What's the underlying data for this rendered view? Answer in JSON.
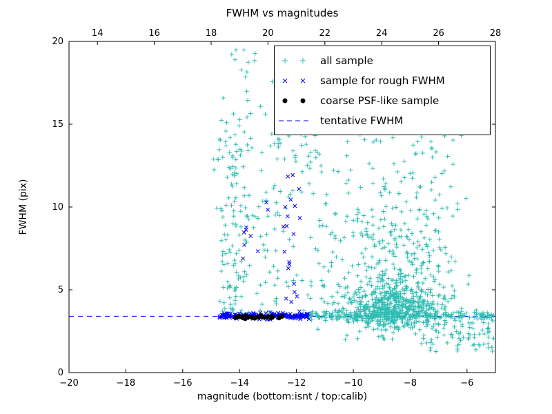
{
  "chart_data": {
    "type": "scatter",
    "title": "FWHM vs magnitudes",
    "xlabel": "magnitude (bottom:isnt / top:calib)",
    "ylabel": "FWHM (pix)",
    "xlim": [
      -20,
      -5
    ],
    "ylim": [
      0,
      20
    ],
    "x_ticks_bottom": [
      -20,
      -18,
      -16,
      -14,
      -12,
      -10,
      -8,
      -6
    ],
    "x_ticks_top": [
      14,
      16,
      18,
      20,
      22,
      24,
      26,
      28
    ],
    "top_axis_offset": 33,
    "y_ticks": [
      0,
      5,
      10,
      15,
      20
    ],
    "grid": false,
    "legend_position": "upper right",
    "line": {
      "name": "tentative FWHM",
      "style": "dashed",
      "color": "#0000ff",
      "y": 3.4
    },
    "legend": [
      {
        "label": "all sample",
        "marker": "plus",
        "color": "#2fbdb3",
        "type": "scatter"
      },
      {
        "label": "sample for rough FWHM",
        "marker": "x",
        "color": "#0000ff",
        "type": "scatter"
      },
      {
        "label": "coarse PSF-like sample",
        "marker": "dot",
        "color": "#000000",
        "type": "scatter"
      },
      {
        "label": "tentative FWHM",
        "marker": "dash",
        "color": "#0000ff",
        "type": "line"
      }
    ],
    "series": [
      {
        "name": "all sample",
        "marker": "plus",
        "color": "#2fbdb3",
        "clusters": [
          {
            "n": 520,
            "x": {
              "g": [
                -8.6,
                0.85
              ]
            },
            "y": {
              "g": [
                3.9,
                0.75
              ]
            },
            "ymin": 2.0
          },
          {
            "n": 260,
            "x": {
              "g": [
                -8.4,
                1.0
              ]
            },
            "y": {
              "g": [
                6.3,
                2.2
              ]
            },
            "ymin": 3.0
          },
          {
            "n": 240,
            "x": {
              "u": [
                -11.8,
                -5.05
              ]
            },
            "y": {
              "g": [
                3.45,
                0.14
              ]
            }
          },
          {
            "n": 110,
            "x": {
              "g": [
                -14.3,
                0.26
              ]
            },
            "y": {
              "u": [
                3.4,
                14.5
              ]
            }
          },
          {
            "n": 22,
            "x": {
              "u": [
                -14.7,
                -13.4
              ]
            },
            "y": {
              "u": [
                14.5,
                19.8
              ]
            }
          },
          {
            "n": 135,
            "x": {
              "u": [
                -13.9,
                -10.5
              ]
            },
            "y": {
              "u": [
                3.6,
                14.8
              ]
            }
          },
          {
            "n": 10,
            "x": {
              "u": [
                -13.3,
                -11.6
              ]
            },
            "y": {
              "u": [
                15.5,
                19.7
              ]
            }
          },
          {
            "n": 90,
            "x": {
              "u": [
                -10.4,
                -6.2
              ]
            },
            "y": {
              "u": [
                8.0,
                15.2
              ]
            }
          },
          {
            "n": 70,
            "x": {
              "u": [
                -7.6,
                -5.05
              ]
            },
            "y": {
              "u": [
                1.2,
                3.2
              ]
            }
          }
        ]
      },
      {
        "name": "sample for rough FWHM",
        "marker": "x",
        "color": "#0000ff",
        "clusters": [
          {
            "n": 170,
            "x": {
              "u": [
                -14.72,
                -11.55
              ]
            },
            "y": {
              "g": [
                3.42,
                0.09
              ]
            }
          },
          {
            "n": 20,
            "x": {
              "g": [
                -12.15,
                0.18
              ]
            },
            "y": {
              "u": [
                3.9,
                12.2
              ]
            }
          },
          {
            "n": 9,
            "x": {
              "u": [
                -13.9,
                -12.5
              ]
            },
            "y": {
              "u": [
                4.5,
                10.5
              ]
            }
          }
        ]
      },
      {
        "name": "coarse PSF-like sample",
        "marker": "dot",
        "color": "#000000",
        "clusters": [
          {
            "n": 28,
            "x": {
              "u": [
                -14.15,
                -12.45
              ]
            },
            "y": {
              "g": [
                3.37,
                0.05
              ]
            }
          }
        ]
      }
    ]
  }
}
